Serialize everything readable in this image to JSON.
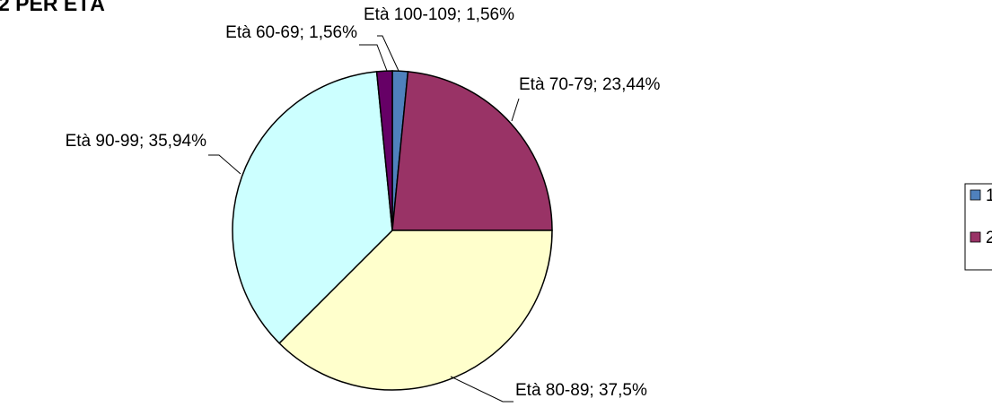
{
  "chart_data": {
    "type": "pie",
    "title": "2 PER ETÀ",
    "categories": [
      "Età 100-109",
      "Età 70-79",
      "Età 80-89",
      "Età 90-99",
      "Età 60-69"
    ],
    "values": [
      1.56,
      23.44,
      37.5,
      35.94,
      1.56
    ],
    "value_labels": [
      "1,56%",
      "23,44%",
      "37,5%",
      "35,94%",
      "1,56%"
    ],
    "colors": [
      "#4f81bd",
      "#993366",
      "#ffffcc",
      "#ccffff",
      "#660066"
    ],
    "legend": {
      "position": "right",
      "entries": [
        "1",
        "2"
      ],
      "colors": [
        "#4f81bd",
        "#993366"
      ]
    }
  }
}
